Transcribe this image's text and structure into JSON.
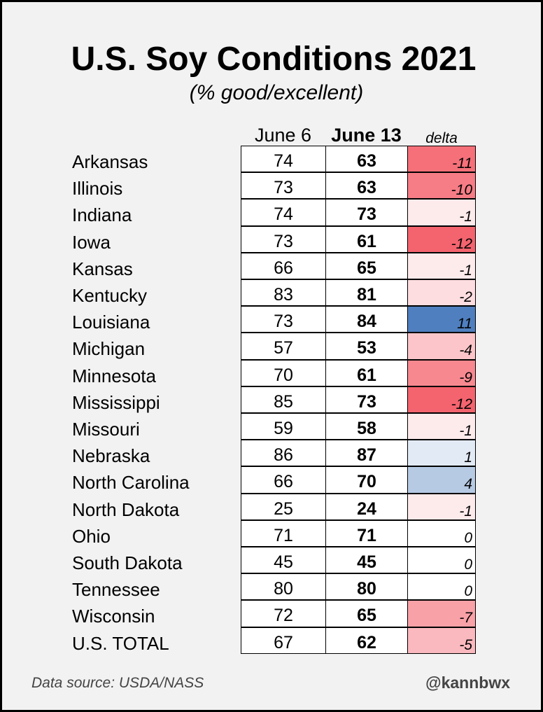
{
  "title": "U.S. Soy Conditions 2021",
  "subtitle": "(% good/excellent)",
  "footer": {
    "source": "Data source: USDA/NASS",
    "handle": "@kannbwx"
  },
  "colors": {
    "negative_strong": "#f4646e",
    "positive_strong": "#4f7fbf",
    "neutral": "#ffffff"
  },
  "chart_data": {
    "type": "table",
    "title": "U.S. Soy Conditions 2021",
    "subtitle": "(% good/excellent)",
    "columns": [
      "June 6",
      "June 13",
      "delta"
    ],
    "rows": [
      {
        "state": "Arkansas",
        "jun6": 74,
        "jun13": 63,
        "delta": -11
      },
      {
        "state": "Illinois",
        "jun6": 73,
        "jun13": 63,
        "delta": -10
      },
      {
        "state": "Indiana",
        "jun6": 74,
        "jun13": 73,
        "delta": -1
      },
      {
        "state": "Iowa",
        "jun6": 73,
        "jun13": 61,
        "delta": -12
      },
      {
        "state": "Kansas",
        "jun6": 66,
        "jun13": 65,
        "delta": -1
      },
      {
        "state": "Kentucky",
        "jun6": 83,
        "jun13": 81,
        "delta": -2
      },
      {
        "state": "Louisiana",
        "jun6": 73,
        "jun13": 84,
        "delta": 11
      },
      {
        "state": "Michigan",
        "jun6": 57,
        "jun13": 53,
        "delta": -4
      },
      {
        "state": "Minnesota",
        "jun6": 70,
        "jun13": 61,
        "delta": -9
      },
      {
        "state": "Mississippi",
        "jun6": 85,
        "jun13": 73,
        "delta": -12
      },
      {
        "state": "Missouri",
        "jun6": 59,
        "jun13": 58,
        "delta": -1
      },
      {
        "state": "Nebraska",
        "jun6": 86,
        "jun13": 87,
        "delta": 1
      },
      {
        "state": "North Carolina",
        "jun6": 66,
        "jun13": 70,
        "delta": 4
      },
      {
        "state": "North Dakota",
        "jun6": 25,
        "jun13": 24,
        "delta": -1
      },
      {
        "state": "Ohio",
        "jun6": 71,
        "jun13": 71,
        "delta": 0
      },
      {
        "state": "South Dakota",
        "jun6": 45,
        "jun13": 45,
        "delta": 0
      },
      {
        "state": "Tennessee",
        "jun6": 80,
        "jun13": 80,
        "delta": 0
      },
      {
        "state": "Wisconsin",
        "jun6": 72,
        "jun13": 65,
        "delta": -7
      },
      {
        "state": "U.S. TOTAL",
        "jun6": 67,
        "jun13": 62,
        "delta": -5
      }
    ]
  }
}
